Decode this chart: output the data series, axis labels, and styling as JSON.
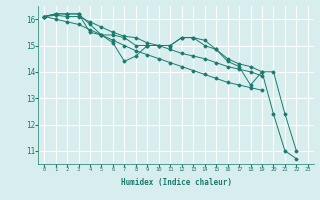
{
  "xlabel": "Humidex (Indice chaleur)",
  "background_color": "#d8eeee",
  "grid_color": "#ffffff",
  "line_color": "#1a7a6e",
  "xlim": [
    -0.5,
    23.5
  ],
  "ylim": [
    10.5,
    16.5
  ],
  "yticks": [
    11,
    12,
    13,
    14,
    15,
    16
  ],
  "xticks": [
    0,
    1,
    2,
    3,
    4,
    5,
    6,
    7,
    8,
    9,
    10,
    11,
    12,
    13,
    14,
    15,
    16,
    17,
    18,
    19,
    20,
    21,
    22,
    23
  ],
  "series": [
    [
      16.1,
      16.2,
      16.2,
      16.2,
      15.5,
      15.4,
      15.1,
      14.4,
      14.6,
      15.0,
      15.0,
      15.0,
      15.3,
      15.3,
      15.2,
      14.85,
      14.4,
      14.2,
      13.5,
      14.0,
      12.4,
      11.0,
      10.7
    ],
    [
      16.1,
      16.2,
      16.2,
      16.2,
      15.8,
      15.4,
      15.4,
      15.3,
      15.0,
      15.0,
      15.0,
      15.0,
      15.3,
      15.3,
      15.0,
      14.85,
      14.5,
      14.3,
      14.2,
      14.0,
      14.0,
      12.4,
      11.0
    ],
    [
      16.1,
      16.15,
      16.1,
      16.1,
      15.9,
      15.7,
      15.5,
      15.35,
      15.3,
      15.1,
      15.0,
      14.85,
      14.7,
      14.6,
      14.5,
      14.35,
      14.2,
      14.1,
      14.0,
      13.85,
      null,
      null,
      null
    ],
    [
      16.1,
      16.0,
      15.9,
      15.8,
      15.6,
      15.4,
      15.2,
      15.0,
      14.8,
      14.65,
      14.5,
      14.35,
      14.2,
      14.05,
      13.9,
      13.75,
      13.6,
      13.5,
      13.4,
      13.3,
      null,
      null,
      null
    ]
  ]
}
